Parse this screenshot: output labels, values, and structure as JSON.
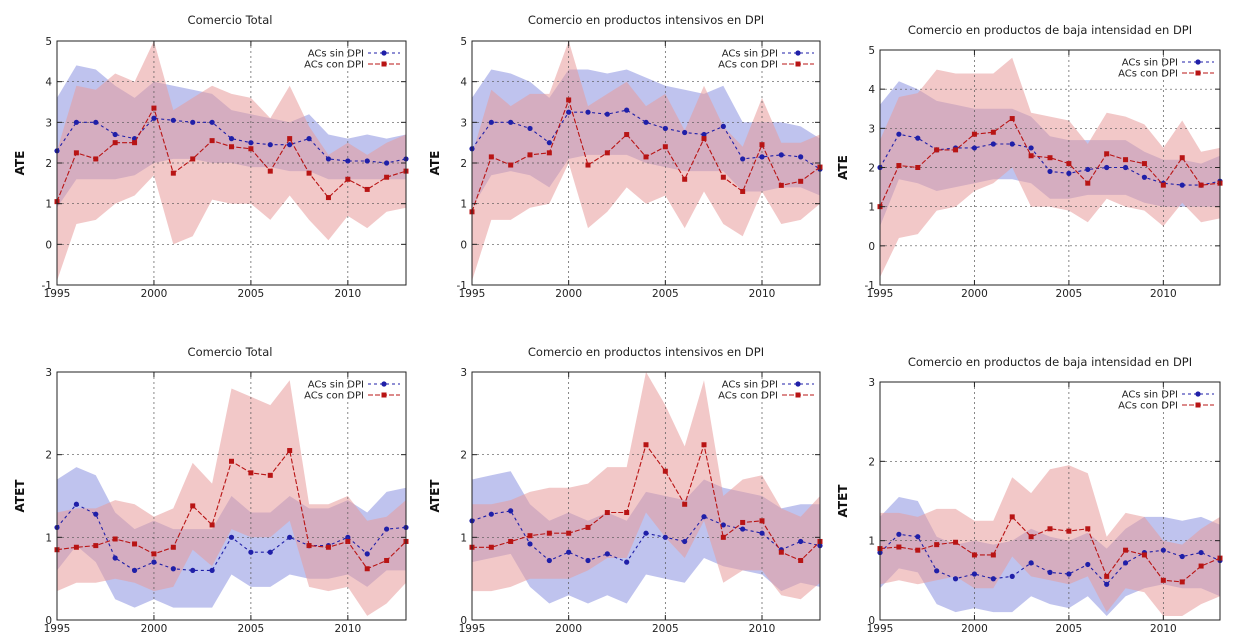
{
  "chart_data": [
    {
      "type": "line",
      "title": "Comercio Total",
      "ylabel": "ATE",
      "xlim": [
        1995,
        2013
      ],
      "ylim": [
        -1,
        5
      ],
      "xticks": [
        "1995",
        "2000",
        "2005",
        "2010"
      ],
      "yticks": [
        "-1",
        "0",
        "1",
        "2",
        "3",
        "4",
        "5"
      ],
      "legend_position": "top-right",
      "grid": true,
      "x": [
        1995,
        1996,
        1997,
        1998,
        1999,
        2000,
        2001,
        2002,
        2003,
        2004,
        2005,
        2006,
        2007,
        2008,
        2009,
        2010,
        2011,
        2012,
        2013
      ],
      "series": [
        {
          "name": "ACs sin DPI",
          "color": "#1f1fa8",
          "band_color": "#8a92e0",
          "values": [
            2.3,
            3.0,
            3.0,
            2.7,
            2.6,
            3.1,
            3.05,
            3.0,
            3.0,
            2.6,
            2.5,
            2.45,
            2.45,
            2.6,
            2.1,
            2.05,
            2.05,
            2.0,
            2.1
          ],
          "lower": [
            0.9,
            1.6,
            1.6,
            1.6,
            1.7,
            2.0,
            2.1,
            2.1,
            2.0,
            2.0,
            1.9,
            1.9,
            1.8,
            1.8,
            1.6,
            1.6,
            1.6,
            1.6,
            1.6
          ],
          "upper": [
            3.6,
            4.4,
            4.3,
            3.9,
            3.6,
            4.0,
            3.9,
            3.8,
            3.7,
            3.3,
            3.2,
            3.1,
            3.0,
            3.2,
            2.7,
            2.6,
            2.7,
            2.6,
            2.7
          ]
        },
        {
          "name": "ACs con DPI",
          "color": "#b81414",
          "band_color": "#e89a9a",
          "values": [
            1.05,
            2.25,
            2.1,
            2.5,
            2.5,
            3.35,
            1.75,
            2.1,
            2.55,
            2.4,
            2.35,
            1.8,
            2.6,
            1.75,
            1.15,
            1.6,
            1.35,
            1.65,
            1.8
          ],
          "lower": [
            -0.9,
            0.5,
            0.6,
            1.0,
            1.2,
            1.7,
            0.0,
            0.2,
            1.1,
            1.0,
            1.0,
            0.6,
            1.2,
            0.6,
            0.1,
            0.7,
            0.4,
            0.8,
            0.9
          ],
          "upper": [
            2.3,
            3.9,
            3.8,
            4.2,
            4.0,
            5.0,
            3.3,
            3.6,
            3.9,
            3.7,
            3.6,
            3.1,
            3.9,
            2.9,
            2.2,
            2.5,
            2.2,
            2.5,
            2.7
          ]
        }
      ]
    },
    {
      "type": "line",
      "title": "Comercio en productos intensivos en DPI",
      "ylabel": "ATE",
      "xlim": [
        1995,
        2013
      ],
      "ylim": [
        -1,
        5
      ],
      "xticks": [
        "1995",
        "2000",
        "2005",
        "2010"
      ],
      "yticks": [
        "-1",
        "0",
        "1",
        "2",
        "3",
        "4",
        "5"
      ],
      "legend_position": "top-right",
      "grid": true,
      "x": [
        1995,
        1996,
        1997,
        1998,
        1999,
        2000,
        2001,
        2002,
        2003,
        2004,
        2005,
        2006,
        2007,
        2008,
        2009,
        2010,
        2011,
        2012,
        2013
      ],
      "series": [
        {
          "name": "ACs sin DPI",
          "color": "#1f1fa8",
          "band_color": "#8a92e0",
          "values": [
            2.35,
            3.0,
            3.0,
            2.85,
            2.5,
            3.25,
            3.25,
            3.2,
            3.3,
            3.0,
            2.85,
            2.75,
            2.7,
            2.9,
            2.1,
            2.15,
            2.2,
            2.15,
            1.85
          ],
          "lower": [
            0.9,
            1.7,
            1.8,
            1.7,
            1.4,
            2.1,
            2.2,
            2.2,
            2.2,
            2.0,
            1.9,
            1.8,
            1.8,
            1.8,
            1.3,
            1.3,
            1.4,
            1.4,
            1.2
          ],
          "upper": [
            3.6,
            4.3,
            4.2,
            4.0,
            3.6,
            4.3,
            4.3,
            4.2,
            4.3,
            4.1,
            3.9,
            3.8,
            3.7,
            3.9,
            3.0,
            3.0,
            3.0,
            2.9,
            2.6
          ]
        },
        {
          "name": "ACs con DPI",
          "color": "#b81414",
          "band_color": "#e89a9a",
          "values": [
            0.8,
            2.15,
            1.95,
            2.2,
            2.25,
            3.55,
            1.95,
            2.25,
            2.7,
            2.15,
            2.4,
            1.6,
            2.6,
            1.65,
            1.3,
            2.45,
            1.45,
            1.55,
            1.9
          ],
          "lower": [
            -0.9,
            0.6,
            0.6,
            0.9,
            1.0,
            2.0,
            0.4,
            0.8,
            1.4,
            1.0,
            1.2,
            0.4,
            1.3,
            0.5,
            0.2,
            1.3,
            0.5,
            0.6,
            1.0
          ],
          "upper": [
            2.2,
            3.8,
            3.4,
            3.7,
            3.7,
            5.0,
            3.4,
            3.7,
            4.0,
            3.4,
            3.7,
            2.8,
            3.9,
            2.9,
            2.4,
            3.6,
            2.5,
            2.5,
            2.7
          ]
        }
      ]
    },
    {
      "type": "line",
      "title": "Comercio en productos de baja intensidad en DPI",
      "ylabel": "ATE",
      "xlim": [
        1995,
        2013
      ],
      "ylim": [
        -1,
        5
      ],
      "xticks": [
        "1995",
        "2000",
        "2005",
        "2010"
      ],
      "yticks": [
        "-1",
        "0",
        "1",
        "2",
        "3",
        "4",
        "5"
      ],
      "legend_position": "top-right",
      "grid": true,
      "x": [
        1995,
        1996,
        1997,
        1998,
        1999,
        2000,
        2001,
        2002,
        2003,
        2004,
        2005,
        2006,
        2007,
        2008,
        2009,
        2010,
        2011,
        2012,
        2013
      ],
      "series": [
        {
          "name": "ACs sin DPI",
          "color": "#1f1fa8",
          "band_color": "#8a92e0",
          "values": [
            2.0,
            2.85,
            2.75,
            2.45,
            2.5,
            2.5,
            2.6,
            2.6,
            2.5,
            1.9,
            1.85,
            1.95,
            2.0,
            2.0,
            1.75,
            1.6,
            1.55,
            1.55,
            1.65
          ],
          "lower": [
            0.5,
            1.7,
            1.6,
            1.4,
            1.5,
            1.6,
            1.7,
            1.7,
            1.6,
            1.2,
            1.2,
            1.3,
            1.3,
            1.3,
            1.1,
            1.0,
            1.0,
            1.0,
            1.0
          ],
          "upper": [
            3.6,
            4.2,
            4.0,
            3.7,
            3.6,
            3.5,
            3.5,
            3.5,
            3.3,
            2.8,
            2.7,
            2.7,
            2.7,
            2.7,
            2.4,
            2.2,
            2.2,
            2.1,
            2.3
          ]
        },
        {
          "name": "ACs con DPI",
          "color": "#b81414",
          "band_color": "#e89a9a",
          "values": [
            1.0,
            2.05,
            2.0,
            2.45,
            2.45,
            2.85,
            2.9,
            3.25,
            2.3,
            2.25,
            2.1,
            1.6,
            2.35,
            2.2,
            2.1,
            1.55,
            2.25,
            1.55,
            1.6
          ],
          "lower": [
            -0.8,
            0.2,
            0.3,
            0.9,
            1.0,
            1.4,
            1.6,
            2.0,
            1.0,
            1.0,
            0.9,
            0.6,
            1.2,
            1.0,
            0.9,
            0.5,
            1.1,
            0.6,
            0.7
          ],
          "upper": [
            2.7,
            3.8,
            3.9,
            4.5,
            4.4,
            4.4,
            4.4,
            4.8,
            3.4,
            3.3,
            3.2,
            2.6,
            3.4,
            3.3,
            3.1,
            2.5,
            3.2,
            2.4,
            2.5
          ]
        }
      ]
    },
    {
      "type": "line",
      "title": "Comercio Total",
      "ylabel": "ATET",
      "xlim": [
        1995,
        2013
      ],
      "ylim": [
        0,
        3
      ],
      "xticks": [
        "1995",
        "2000",
        "2005",
        "2010"
      ],
      "yticks": [
        "0",
        "1",
        "2",
        "3"
      ],
      "legend_position": "top-right",
      "grid": true,
      "x": [
        1995,
        1996,
        1997,
        1998,
        1999,
        2000,
        2001,
        2002,
        2003,
        2004,
        2005,
        2006,
        2007,
        2008,
        2009,
        2010,
        2011,
        2012,
        2013
      ],
      "series": [
        {
          "name": "ACs sin DPI",
          "color": "#1f1fa8",
          "band_color": "#8a92e0",
          "values": [
            1.12,
            1.4,
            1.28,
            0.75,
            0.6,
            0.7,
            0.62,
            0.6,
            0.6,
            1.0,
            0.82,
            0.82,
            1.0,
            0.9,
            0.9,
            1.0,
            0.8,
            1.1,
            1.12
          ],
          "lower": [
            0.6,
            0.9,
            0.7,
            0.25,
            0.15,
            0.25,
            0.15,
            0.15,
            0.15,
            0.55,
            0.4,
            0.4,
            0.55,
            0.5,
            0.5,
            0.55,
            0.4,
            0.6,
            0.6
          ],
          "upper": [
            1.7,
            1.85,
            1.75,
            1.3,
            1.1,
            1.2,
            1.1,
            1.1,
            1.1,
            1.5,
            1.3,
            1.3,
            1.5,
            1.35,
            1.35,
            1.45,
            1.3,
            1.55,
            1.6
          ]
        },
        {
          "name": "ACs con DPI",
          "color": "#b81414",
          "band_color": "#e89a9a",
          "values": [
            0.85,
            0.88,
            0.9,
            0.98,
            0.92,
            0.8,
            0.88,
            1.38,
            1.15,
            1.92,
            1.78,
            1.75,
            2.05,
            0.9,
            0.88,
            0.95,
            0.62,
            0.72,
            0.95
          ],
          "lower": [
            0.35,
            0.45,
            0.45,
            0.5,
            0.45,
            0.35,
            0.4,
            0.85,
            0.65,
            1.1,
            1.0,
            1.0,
            1.2,
            0.4,
            0.35,
            0.4,
            0.05,
            0.2,
            0.45
          ],
          "upper": [
            1.3,
            1.35,
            1.35,
            1.45,
            1.4,
            1.25,
            1.35,
            1.9,
            1.65,
            2.8,
            2.7,
            2.6,
            2.9,
            1.4,
            1.4,
            1.5,
            1.2,
            1.25,
            1.45
          ]
        }
      ]
    },
    {
      "type": "line",
      "title": "Comercio en productos intensivos en DPI",
      "ylabel": "ATET",
      "xlim": [
        1995,
        2013
      ],
      "ylim": [
        0,
        3
      ],
      "xticks": [
        "1995",
        "2000",
        "2005",
        "2010"
      ],
      "yticks": [
        "0",
        "1",
        "2",
        "3"
      ],
      "legend_position": "top-right",
      "grid": true,
      "x": [
        1995,
        1996,
        1997,
        1998,
        1999,
        2000,
        2001,
        2002,
        2003,
        2004,
        2005,
        2006,
        2007,
        2008,
        2009,
        2010,
        2011,
        2012,
        2013
      ],
      "series": [
        {
          "name": "ACs sin DPI",
          "color": "#1f1fa8",
          "band_color": "#8a92e0",
          "values": [
            1.2,
            1.28,
            1.32,
            0.92,
            0.72,
            0.82,
            0.72,
            0.8,
            0.7,
            1.05,
            1.0,
            0.95,
            1.25,
            1.15,
            1.1,
            1.05,
            0.85,
            0.95,
            0.9
          ],
          "lower": [
            0.7,
            0.75,
            0.8,
            0.4,
            0.2,
            0.3,
            0.2,
            0.3,
            0.2,
            0.55,
            0.5,
            0.45,
            0.75,
            0.65,
            0.6,
            0.55,
            0.35,
            0.45,
            0.4
          ],
          "upper": [
            1.7,
            1.75,
            1.8,
            1.4,
            1.2,
            1.3,
            1.2,
            1.3,
            1.2,
            1.55,
            1.5,
            1.45,
            1.7,
            1.6,
            1.55,
            1.5,
            1.35,
            1.4,
            1.4
          ]
        },
        {
          "name": "ACs con DPI",
          "color": "#b81414",
          "band_color": "#e89a9a",
          "values": [
            0.88,
            0.88,
            0.95,
            1.02,
            1.05,
            1.05,
            1.12,
            1.3,
            1.3,
            2.12,
            1.8,
            1.4,
            2.12,
            1.0,
            1.18,
            1.2,
            0.82,
            0.72,
            0.95
          ],
          "lower": [
            0.35,
            0.35,
            0.4,
            0.5,
            0.5,
            0.5,
            0.6,
            0.75,
            0.75,
            1.3,
            1.0,
            0.75,
            1.2,
            0.45,
            0.6,
            0.6,
            0.3,
            0.25,
            0.45
          ],
          "upper": [
            1.4,
            1.4,
            1.45,
            1.55,
            1.6,
            1.6,
            1.65,
            1.85,
            1.85,
            3.0,
            2.6,
            2.1,
            2.9,
            1.5,
            1.7,
            1.75,
            1.35,
            1.25,
            1.5
          ]
        }
      ]
    },
    {
      "type": "line",
      "title": "Comercio en productos de baja intensidad en DPI",
      "ylabel": "ATET",
      "xlim": [
        1995,
        2013
      ],
      "ylim": [
        0,
        3
      ],
      "xticks": [
        "1995",
        "2000",
        "2005",
        "2010"
      ],
      "yticks": [
        "0",
        "1",
        "2",
        "3"
      ],
      "legend_position": "top-right",
      "grid": true,
      "x": [
        1995,
        1996,
        1997,
        1998,
        1999,
        2000,
        2001,
        2002,
        2003,
        2004,
        2005,
        2006,
        2007,
        2008,
        2009,
        2010,
        2011,
        2012,
        2013
      ],
      "series": [
        {
          "name": "ACs sin DPI",
          "color": "#1f1fa8",
          "band_color": "#8a92e0",
          "values": [
            0.85,
            1.08,
            1.05,
            0.62,
            0.52,
            0.58,
            0.52,
            0.55,
            0.72,
            0.6,
            0.58,
            0.7,
            0.45,
            0.72,
            0.85,
            0.88,
            0.8,
            0.85,
            0.75
          ],
          "lower": [
            0.4,
            0.65,
            0.6,
            0.2,
            0.1,
            0.15,
            0.1,
            0.1,
            0.3,
            0.2,
            0.15,
            0.3,
            0.05,
            0.3,
            0.4,
            0.45,
            0.4,
            0.4,
            0.3
          ],
          "upper": [
            1.3,
            1.55,
            1.5,
            1.05,
            0.95,
            1.0,
            0.95,
            1.0,
            1.15,
            1.05,
            1.0,
            1.1,
            0.9,
            1.15,
            1.3,
            1.3,
            1.25,
            1.3,
            1.2
          ]
        },
        {
          "name": "ACs con DPI",
          "color": "#b81414",
          "band_color": "#e89a9a",
          "values": [
            0.9,
            0.92,
            0.88,
            0.95,
            0.98,
            0.82,
            0.82,
            1.3,
            1.05,
            1.15,
            1.12,
            1.15,
            0.55,
            0.88,
            0.82,
            0.5,
            0.48,
            0.68,
            0.78
          ],
          "lower": [
            0.45,
            0.5,
            0.45,
            0.5,
            0.55,
            0.4,
            0.4,
            0.8,
            0.55,
            0.5,
            0.45,
            0.55,
            0.1,
            0.4,
            0.35,
            0.05,
            0.05,
            0.2,
            0.3
          ],
          "upper": [
            1.35,
            1.35,
            1.3,
            1.4,
            1.4,
            1.25,
            1.25,
            1.8,
            1.6,
            1.9,
            1.95,
            1.85,
            1.05,
            1.35,
            1.3,
            1.0,
            0.95,
            1.15,
            1.3
          ]
        }
      ]
    }
  ]
}
